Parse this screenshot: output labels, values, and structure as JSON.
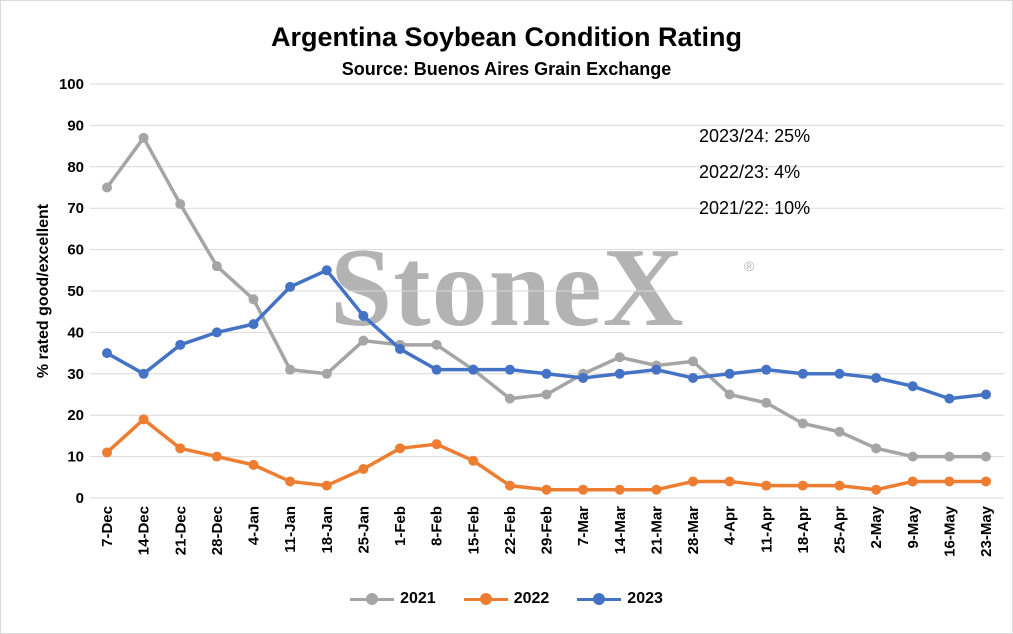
{
  "chart_data": {
    "type": "line",
    "title": "Argentina Soybean Condition Rating",
    "subtitle": "Source: Buenos Aires Grain Exchange",
    "xlabel": "",
    "ylabel": "% rated good/excellent",
    "ylim": [
      0,
      100
    ],
    "yticks": [
      0,
      10,
      20,
      30,
      40,
      50,
      60,
      70,
      80,
      90,
      100
    ],
    "grid": true,
    "legend_position": "bottom",
    "categories": [
      "7-Dec",
      "14-Dec",
      "21-Dec",
      "28-Dec",
      "4-Jan",
      "11-Jan",
      "18-Jan",
      "25-Jan",
      "1-Feb",
      "8-Feb",
      "15-Feb",
      "22-Feb",
      "29-Feb",
      "7-Mar",
      "14-Mar",
      "21-Mar",
      "28-Mar",
      "4-Apr",
      "11-Apr",
      "18-Apr",
      "25-Apr",
      "2-May",
      "9-May",
      "16-May",
      "23-May"
    ],
    "series": [
      {
        "name": "2021",
        "color": "#a5a5a5",
        "values": [
          75,
          87,
          71,
          56,
          48,
          31,
          30,
          38,
          37,
          37,
          31,
          24,
          25,
          30,
          34,
          32,
          33,
          25,
          23,
          18,
          16,
          12,
          10,
          10,
          10
        ]
      },
      {
        "name": "2022",
        "color": "#ed7d31",
        "values": [
          11,
          19,
          12,
          10,
          8,
          4,
          3,
          7,
          12,
          13,
          9,
          3,
          2,
          2,
          2,
          2,
          4,
          4,
          3,
          3,
          3,
          2,
          4,
          4,
          4
        ]
      },
      {
        "name": "2023",
        "color": "#4472c4",
        "values": [
          35,
          30,
          37,
          40,
          42,
          51,
          55,
          44,
          36,
          31,
          31,
          31,
          30,
          29,
          30,
          31,
          29,
          30,
          31,
          30,
          30,
          29,
          27,
          24,
          25
        ]
      }
    ],
    "annotations": [
      "2023/24: 25%",
      "2022/23: 4%",
      "2021/22: 10%"
    ]
  },
  "watermark": {
    "text": "StoneX",
    "mark": "®"
  }
}
